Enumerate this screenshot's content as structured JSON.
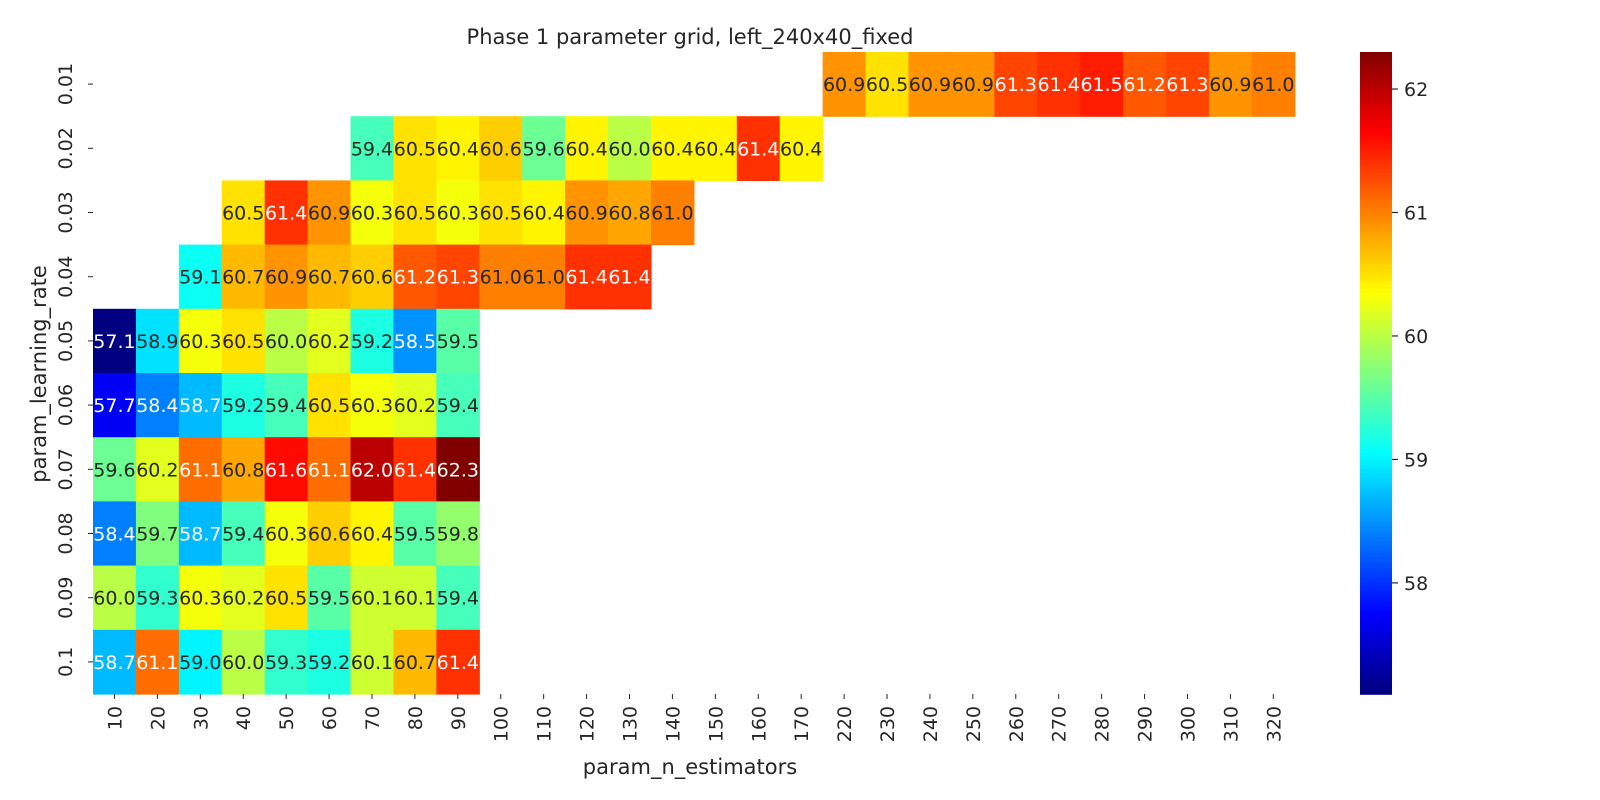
{
  "chart_data": {
    "type": "heatmap",
    "title": "Phase 1 parameter grid, left_240x40_fixed",
    "xlabel": "param_n_estimators",
    "ylabel": "param_learning_rate",
    "x_categories": [
      "10",
      "20",
      "30",
      "40",
      "50",
      "60",
      "70",
      "80",
      "90",
      "100",
      "110",
      "120",
      "130",
      "140",
      "150",
      "160",
      "170",
      "220",
      "230",
      "240",
      "250",
      "260",
      "270",
      "280",
      "290",
      "300",
      "310",
      "320"
    ],
    "y_categories": [
      "0.01",
      "0.02",
      "0.03",
      "0.04",
      "0.05",
      "0.06",
      "0.07",
      "0.08",
      "0.09",
      "0.1"
    ],
    "values": [
      [
        null,
        null,
        null,
        null,
        null,
        null,
        null,
        null,
        null,
        null,
        null,
        null,
        null,
        null,
        null,
        null,
        null,
        60.9,
        60.5,
        60.9,
        60.9,
        61.3,
        61.4,
        61.5,
        61.2,
        61.3,
        60.9,
        61.0
      ],
      [
        null,
        null,
        null,
        null,
        null,
        null,
        59.4,
        60.5,
        60.4,
        60.6,
        59.6,
        60.4,
        60.0,
        60.4,
        60.4,
        61.4,
        60.4,
        null,
        null,
        null,
        null,
        null,
        null,
        null,
        null,
        null,
        null,
        null
      ],
      [
        null,
        null,
        null,
        60.5,
        61.4,
        60.9,
        60.3,
        60.5,
        60.3,
        60.5,
        60.4,
        60.9,
        60.8,
        61.0,
        null,
        null,
        null,
        null,
        null,
        null,
        null,
        null,
        null,
        null,
        null,
        null,
        null,
        null
      ],
      [
        null,
        null,
        59.1,
        60.7,
        60.9,
        60.7,
        60.6,
        61.2,
        61.3,
        61.0,
        61.0,
        61.4,
        61.4,
        null,
        null,
        null,
        null,
        null,
        null,
        null,
        null,
        null,
        null,
        null,
        null,
        null,
        null,
        null
      ],
      [
        57.1,
        58.9,
        60.3,
        60.5,
        60.0,
        60.2,
        59.2,
        58.5,
        59.5,
        null,
        null,
        null,
        null,
        null,
        null,
        null,
        null,
        null,
        null,
        null,
        null,
        null,
        null,
        null,
        null,
        null,
        null,
        null
      ],
      [
        57.7,
        58.4,
        58.7,
        59.2,
        59.4,
        60.5,
        60.3,
        60.2,
        59.4,
        null,
        null,
        null,
        null,
        null,
        null,
        null,
        null,
        null,
        null,
        null,
        null,
        null,
        null,
        null,
        null,
        null,
        null,
        null
      ],
      [
        59.6,
        60.2,
        61.1,
        60.8,
        61.6,
        61.1,
        62.0,
        61.4,
        62.3,
        null,
        null,
        null,
        null,
        null,
        null,
        null,
        null,
        null,
        null,
        null,
        null,
        null,
        null,
        null,
        null,
        null,
        null,
        null
      ],
      [
        58.4,
        59.7,
        58.7,
        59.4,
        60.3,
        60.6,
        60.4,
        59.5,
        59.8,
        null,
        null,
        null,
        null,
        null,
        null,
        null,
        null,
        null,
        null,
        null,
        null,
        null,
        null,
        null,
        null,
        null,
        null,
        null
      ],
      [
        60.0,
        59.3,
        60.3,
        60.2,
        60.5,
        59.5,
        60.1,
        60.1,
        59.4,
        null,
        null,
        null,
        null,
        null,
        null,
        null,
        null,
        null,
        null,
        null,
        null,
        null,
        null,
        null,
        null,
        null,
        null,
        null
      ],
      [
        58.7,
        61.1,
        59.0,
        60.0,
        59.3,
        59.2,
        60.1,
        60.7,
        61.4,
        null,
        null,
        null,
        null,
        null,
        null,
        null,
        null,
        null,
        null,
        null,
        null,
        null,
        null,
        null,
        null,
        null,
        null,
        null
      ]
    ],
    "colormap": "jet",
    "vmin": 57.1,
    "vmax": 62.3,
    "colorbar_ticks": [
      58,
      59,
      60,
      61,
      62
    ],
    "annotation_format": "0.1f",
    "text_colors": {
      "dark": "#262626",
      "light": "#ffffff"
    }
  }
}
